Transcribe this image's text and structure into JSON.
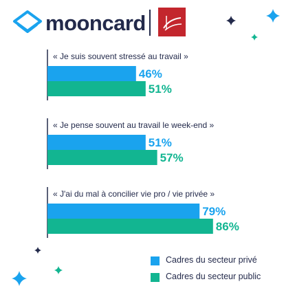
{
  "brand": {
    "name": "mooncard",
    "accent": "#1aa3ee",
    "text_color": "#232a4b",
    "logo_icon": "layers-diamond-icon",
    "partner_logo_icon": "partner-red-logo",
    "partner_color": "#c3262d"
  },
  "decorations": [
    "sparkle-icon",
    "sparkle-icon",
    "sparkle-icon",
    "sparkle-icon",
    "sparkle-icon",
    "sparkle-icon"
  ],
  "chart_data": {
    "type": "bar",
    "orientation": "horizontal",
    "categories": [
      "« Je suis souvent stressé au travail »",
      "« Je pense souvent au travail le week-end »",
      "« J'ai du mal à concilier vie pro / vie privée »"
    ],
    "series": [
      {
        "name": "Cadres du secteur privé",
        "color": "#1aa3ee",
        "values": [
          46,
          51,
          79
        ]
      },
      {
        "name": "Cadres du secteur public",
        "color": "#12b591",
        "values": [
          51,
          57,
          86
        ]
      }
    ],
    "value_suffix": "%",
    "xlim": [
      0,
      100
    ],
    "legend_position": "bottom-right",
    "grid": false
  }
}
